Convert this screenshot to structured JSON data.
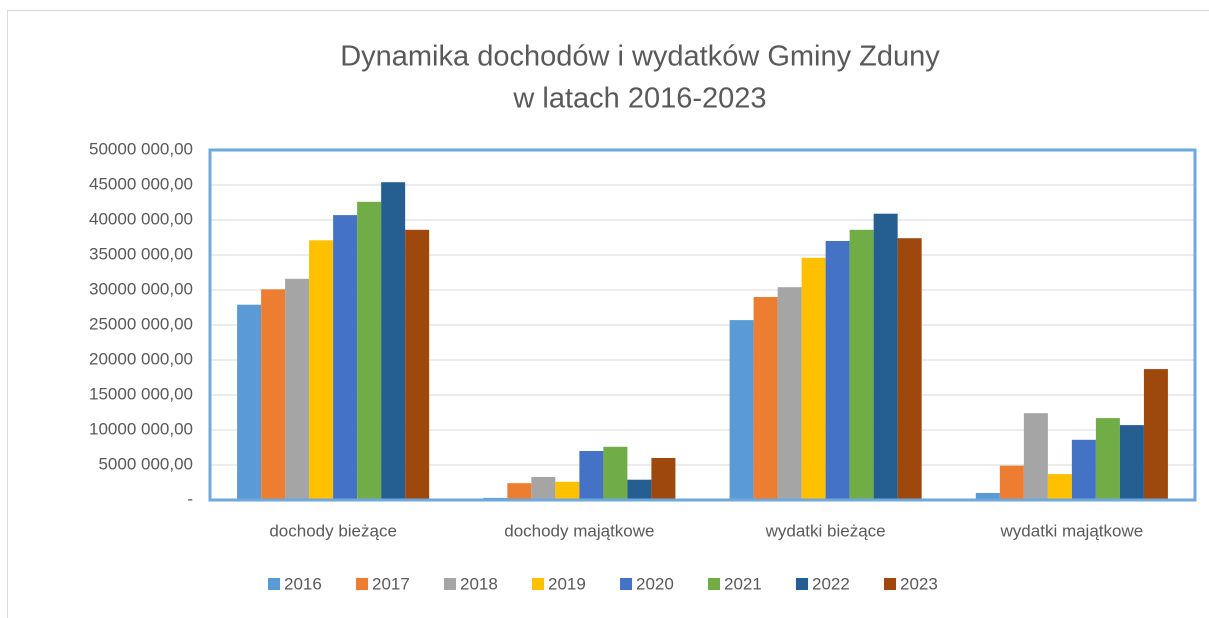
{
  "chart_data": {
    "type": "bar",
    "title": [
      "Dynamika dochodów i wydatków Gminy Zduny",
      "w latach 2016-2023"
    ],
    "categories": [
      "dochody bieżące",
      "dochody majątkowe",
      "wydatki bieżące",
      "wydatki majątkowe"
    ],
    "series": [
      {
        "name": "2016",
        "color": "#5b9bd5",
        "values": [
          27900000,
          300000,
          25700000,
          1000000
        ]
      },
      {
        "name": "2017",
        "color": "#ed7d31",
        "values": [
          30100000,
          2400000,
          29000000,
          4900000
        ]
      },
      {
        "name": "2018",
        "color": "#a5a5a5",
        "values": [
          31600000,
          3300000,
          30400000,
          12400000
        ]
      },
      {
        "name": "2019",
        "color": "#ffc000",
        "values": [
          37100000,
          2600000,
          34600000,
          3700000
        ]
      },
      {
        "name": "2020",
        "color": "#4472c4",
        "values": [
          40700000,
          7000000,
          37000000,
          8600000
        ]
      },
      {
        "name": "2021",
        "color": "#70ad47",
        "values": [
          42600000,
          7600000,
          38600000,
          11700000
        ]
      },
      {
        "name": "2022",
        "color": "#255e91",
        "values": [
          45400000,
          2900000,
          40900000,
          10700000
        ]
      },
      {
        "name": "2023",
        "color": "#9e480e",
        "values": [
          38600000,
          6000000,
          37400000,
          18700000
        ]
      }
    ],
    "ylim": [
      0,
      50000000
    ],
    "yticks": [
      {
        "value": 0,
        "label": "-"
      },
      {
        "value": 5000000,
        "label": "5000 000,00"
      },
      {
        "value": 10000000,
        "label": "10000 000,00"
      },
      {
        "value": 15000000,
        "label": "15000 000,00"
      },
      {
        "value": 20000000,
        "label": "20000 000,00"
      },
      {
        "value": 25000000,
        "label": "25000 000,00"
      },
      {
        "value": 30000000,
        "label": "30000 000,00"
      },
      {
        "value": 35000000,
        "label": "35000 000,00"
      },
      {
        "value": 40000000,
        "label": "40000 000,00"
      },
      {
        "value": 45000000,
        "label": "45000 000,00"
      },
      {
        "value": 50000000,
        "label": "50000 000,00"
      }
    ],
    "grid": true,
    "legend": "bottom"
  }
}
